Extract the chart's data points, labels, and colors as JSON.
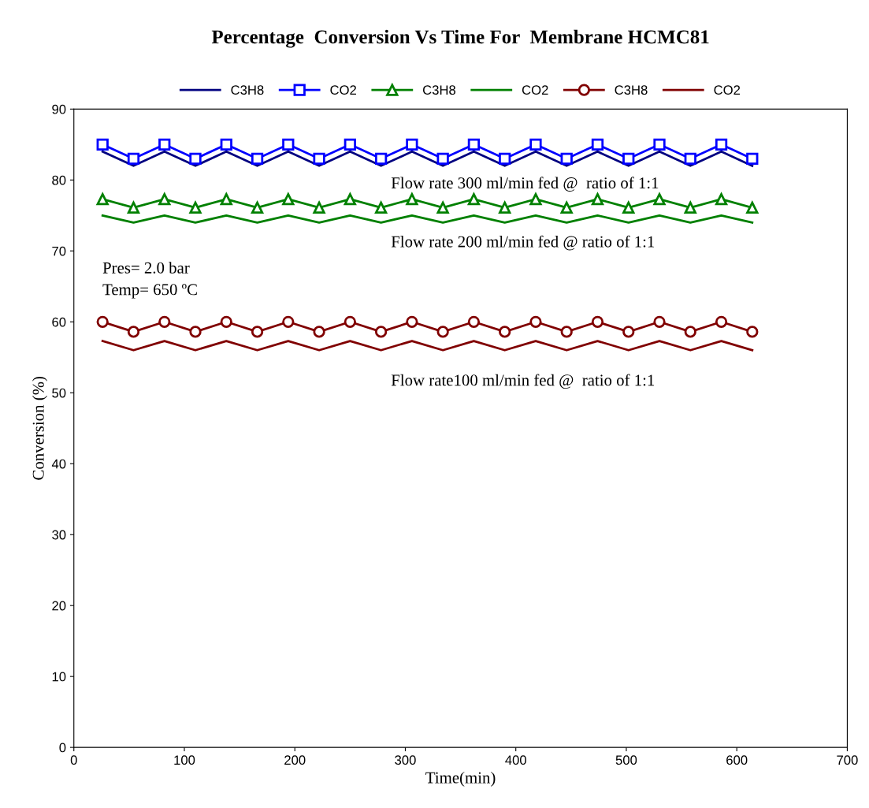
{
  "chart_data": {
    "type": "line",
    "title": "Percentage  Conversion Vs Time For  Membrane HCMC81",
    "xlabel": "Time(min)",
    "ylabel": "Conversion (%)",
    "x": [
      26,
      54,
      82,
      110,
      138,
      166,
      194,
      222,
      250,
      278,
      306,
      334,
      362,
      390,
      418,
      446,
      474,
      502,
      530,
      558,
      586,
      614
    ],
    "series": [
      {
        "name": "C3H8",
        "color": "#000080",
        "marker": "none",
        "values": [
          84,
          82,
          84,
          82,
          84,
          82,
          84,
          82,
          84,
          82,
          84,
          82,
          84,
          82,
          84,
          82,
          84,
          82,
          84,
          82,
          84,
          82
        ]
      },
      {
        "name": "CO2",
        "color": "#0000ff",
        "marker": "square",
        "values": [
          85,
          83,
          85,
          83,
          85,
          83,
          85,
          83,
          85,
          83,
          85,
          83,
          85,
          83,
          85,
          83,
          85,
          83,
          85,
          83,
          85,
          83
        ]
      },
      {
        "name": "C3H8",
        "color": "#008000",
        "marker": "triangle",
        "values": [
          77.3,
          76.1,
          77.3,
          76.1,
          77.3,
          76.1,
          77.3,
          76.1,
          77.3,
          76.1,
          77.3,
          76.1,
          77.3,
          76.1,
          77.3,
          76.1,
          77.3,
          76.1,
          77.3,
          76.1,
          77.3,
          76.1
        ]
      },
      {
        "name": "CO2",
        "color": "#008000",
        "marker": "none",
        "values": [
          75,
          74,
          75,
          74,
          75,
          74,
          75,
          74,
          75,
          74,
          75,
          74,
          75,
          74,
          75,
          74,
          75,
          74,
          75,
          74,
          75,
          74
        ]
      },
      {
        "name": "C3H8",
        "color": "#800000",
        "marker": "circle",
        "values": [
          60,
          58.6,
          60,
          58.6,
          60,
          58.6,
          60,
          58.6,
          60,
          58.6,
          60,
          58.6,
          60,
          58.6,
          60,
          58.6,
          60,
          58.6,
          60,
          58.6,
          60,
          58.6
        ]
      },
      {
        "name": "CO2",
        "color": "#800000",
        "marker": "none",
        "values": [
          57.3,
          56,
          57.3,
          56,
          57.3,
          56,
          57.3,
          56,
          57.3,
          56,
          57.3,
          56,
          57.3,
          56,
          57.3,
          56,
          57.3,
          56,
          57.3,
          56,
          57.3,
          56
        ]
      }
    ],
    "annotations": [
      "Flow rate 300 ml/min fed @  ratio of 1:1",
      "Flow rate 200 ml/min fed @ ratio of 1:1",
      "Pres= 2.0 bar",
      "Temp= 650 ºC",
      "Flow rate100 ml/min fed @  ratio of 1:1"
    ],
    "xlim": [
      0,
      700
    ],
    "xticks": [
      0,
      100,
      200,
      300,
      400,
      500,
      600,
      700
    ],
    "ylim": [
      0,
      90
    ],
    "yticks": [
      0,
      10,
      20,
      30,
      40,
      50,
      60,
      70,
      80,
      90
    ],
    "grid": false,
    "legend": "top",
    "line_style": "solid"
  }
}
